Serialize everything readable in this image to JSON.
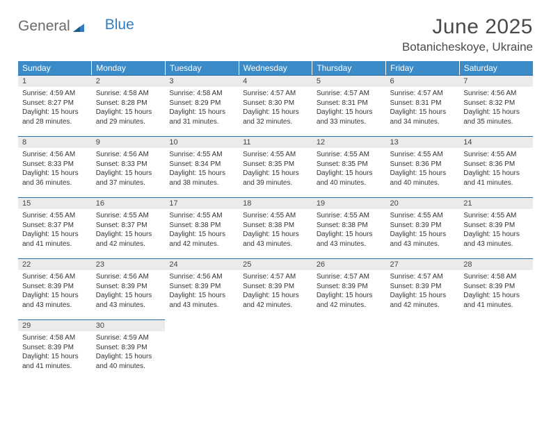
{
  "logo": {
    "text1": "General",
    "text2": "Blue"
  },
  "title": "June 2025",
  "location": "Botanicheskoye, Ukraine",
  "weekdays": [
    "Sunday",
    "Monday",
    "Tuesday",
    "Wednesday",
    "Thursday",
    "Friday",
    "Saturday"
  ],
  "colors": {
    "header_bg": "#3b8bc8",
    "header_text": "#ffffff",
    "daynum_bg": "#ebebeb",
    "daynum_border": "#2f6fa3",
    "logo_gray": "#6a6a6a",
    "logo_blue": "#2f7dc0",
    "title_color": "#4a4a4a"
  },
  "days": [
    {
      "n": 1,
      "sunrise": "4:59 AM",
      "sunset": "8:27 PM",
      "daylight": "15 hours and 28 minutes."
    },
    {
      "n": 2,
      "sunrise": "4:58 AM",
      "sunset": "8:28 PM",
      "daylight": "15 hours and 29 minutes."
    },
    {
      "n": 3,
      "sunrise": "4:58 AM",
      "sunset": "8:29 PM",
      "daylight": "15 hours and 31 minutes."
    },
    {
      "n": 4,
      "sunrise": "4:57 AM",
      "sunset": "8:30 PM",
      "daylight": "15 hours and 32 minutes."
    },
    {
      "n": 5,
      "sunrise": "4:57 AM",
      "sunset": "8:31 PM",
      "daylight": "15 hours and 33 minutes."
    },
    {
      "n": 6,
      "sunrise": "4:57 AM",
      "sunset": "8:31 PM",
      "daylight": "15 hours and 34 minutes."
    },
    {
      "n": 7,
      "sunrise": "4:56 AM",
      "sunset": "8:32 PM",
      "daylight": "15 hours and 35 minutes."
    },
    {
      "n": 8,
      "sunrise": "4:56 AM",
      "sunset": "8:33 PM",
      "daylight": "15 hours and 36 minutes."
    },
    {
      "n": 9,
      "sunrise": "4:56 AM",
      "sunset": "8:33 PM",
      "daylight": "15 hours and 37 minutes."
    },
    {
      "n": 10,
      "sunrise": "4:55 AM",
      "sunset": "8:34 PM",
      "daylight": "15 hours and 38 minutes."
    },
    {
      "n": 11,
      "sunrise": "4:55 AM",
      "sunset": "8:35 PM",
      "daylight": "15 hours and 39 minutes."
    },
    {
      "n": 12,
      "sunrise": "4:55 AM",
      "sunset": "8:35 PM",
      "daylight": "15 hours and 40 minutes."
    },
    {
      "n": 13,
      "sunrise": "4:55 AM",
      "sunset": "8:36 PM",
      "daylight": "15 hours and 40 minutes."
    },
    {
      "n": 14,
      "sunrise": "4:55 AM",
      "sunset": "8:36 PM",
      "daylight": "15 hours and 41 minutes."
    },
    {
      "n": 15,
      "sunrise": "4:55 AM",
      "sunset": "8:37 PM",
      "daylight": "15 hours and 41 minutes."
    },
    {
      "n": 16,
      "sunrise": "4:55 AM",
      "sunset": "8:37 PM",
      "daylight": "15 hours and 42 minutes."
    },
    {
      "n": 17,
      "sunrise": "4:55 AM",
      "sunset": "8:38 PM",
      "daylight": "15 hours and 42 minutes."
    },
    {
      "n": 18,
      "sunrise": "4:55 AM",
      "sunset": "8:38 PM",
      "daylight": "15 hours and 43 minutes."
    },
    {
      "n": 19,
      "sunrise": "4:55 AM",
      "sunset": "8:38 PM",
      "daylight": "15 hours and 43 minutes."
    },
    {
      "n": 20,
      "sunrise": "4:55 AM",
      "sunset": "8:39 PM",
      "daylight": "15 hours and 43 minutes."
    },
    {
      "n": 21,
      "sunrise": "4:55 AM",
      "sunset": "8:39 PM",
      "daylight": "15 hours and 43 minutes."
    },
    {
      "n": 22,
      "sunrise": "4:56 AM",
      "sunset": "8:39 PM",
      "daylight": "15 hours and 43 minutes."
    },
    {
      "n": 23,
      "sunrise": "4:56 AM",
      "sunset": "8:39 PM",
      "daylight": "15 hours and 43 minutes."
    },
    {
      "n": 24,
      "sunrise": "4:56 AM",
      "sunset": "8:39 PM",
      "daylight": "15 hours and 43 minutes."
    },
    {
      "n": 25,
      "sunrise": "4:57 AM",
      "sunset": "8:39 PM",
      "daylight": "15 hours and 42 minutes."
    },
    {
      "n": 26,
      "sunrise": "4:57 AM",
      "sunset": "8:39 PM",
      "daylight": "15 hours and 42 minutes."
    },
    {
      "n": 27,
      "sunrise": "4:57 AM",
      "sunset": "8:39 PM",
      "daylight": "15 hours and 42 minutes."
    },
    {
      "n": 28,
      "sunrise": "4:58 AM",
      "sunset": "8:39 PM",
      "daylight": "15 hours and 41 minutes."
    },
    {
      "n": 29,
      "sunrise": "4:58 AM",
      "sunset": "8:39 PM",
      "daylight": "15 hours and 41 minutes."
    },
    {
      "n": 30,
      "sunrise": "4:59 AM",
      "sunset": "8:39 PM",
      "daylight": "15 hours and 40 minutes."
    }
  ],
  "labels": {
    "sunrise": "Sunrise:",
    "sunset": "Sunset:",
    "daylight": "Daylight:"
  },
  "layout": {
    "start_weekday": 0,
    "rows": 5,
    "cols": 7
  }
}
